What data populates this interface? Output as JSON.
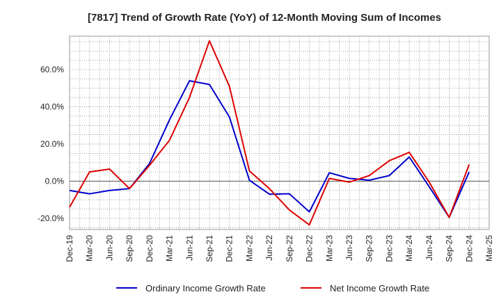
{
  "chart_data": {
    "type": "line",
    "title": "[7817]  Trend of Growth Rate (YoY) of 12-Month Moving Sum of Incomes",
    "xlabel": "",
    "ylabel": "",
    "categories": [
      "Dec-19",
      "Mar-20",
      "Jun-20",
      "Sep-20",
      "Dec-20",
      "Mar-21",
      "Jun-21",
      "Sep-21",
      "Dec-21",
      "Mar-22",
      "Jun-22",
      "Sep-22",
      "Dec-22",
      "Mar-23",
      "Jun-23",
      "Sep-23",
      "Dec-23",
      "Mar-24",
      "Jun-24",
      "Sep-24",
      "Dec-24",
      "Mar-25"
    ],
    "ylim": [
      -26,
      78
    ],
    "yticks": [
      -20,
      0,
      20,
      40,
      60
    ],
    "ytick_labels": [
      "-20.0%",
      "0.0%",
      "20.0%",
      "40.0%",
      "60.0%"
    ],
    "grid": true,
    "legend_position": "bottom",
    "series": [
      {
        "name": "Ordinary Income Growth Rate",
        "color": "#0000cc",
        "values": [
          -5.0,
          -6.8,
          -5.0,
          -4.0,
          9.5,
          33.0,
          54.0,
          52.0,
          34.5,
          0.5,
          -7.0,
          -6.8,
          -16.5,
          4.5,
          1.5,
          0.5,
          3.0,
          13.0,
          -3.0,
          -19.5,
          5.0,
          null
        ]
      },
      {
        "name": "Net Income Growth Rate",
        "color": "#dd0000",
        "values": [
          -14.0,
          5.0,
          6.5,
          -4.0,
          8.5,
          22.0,
          45.0,
          75.5,
          51.0,
          5.5,
          -4.0,
          -15.5,
          -23.5,
          1.5,
          -0.5,
          3.0,
          11.0,
          15.5,
          -0.5,
          -19.5,
          9.0,
          null
        ]
      }
    ]
  }
}
